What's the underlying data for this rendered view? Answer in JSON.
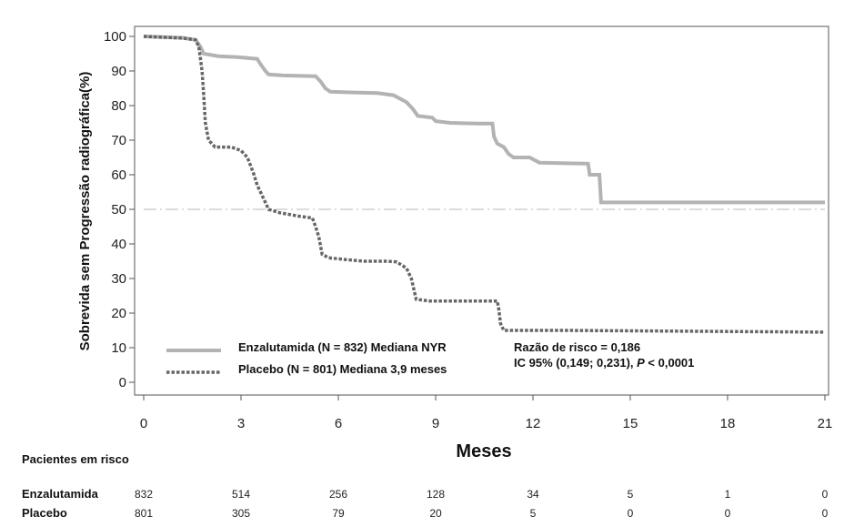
{
  "chart_data": {
    "type": "line",
    "ylabel": "Sobrevida sem Progressão radiográfica(%)",
    "xlabel": "Meses",
    "xlim": [
      0,
      21
    ],
    "ylim": [
      0,
      100
    ],
    "x_ticks": [
      0,
      3,
      6,
      9,
      12,
      15,
      18,
      21
    ],
    "y_ticks": [
      0,
      10,
      20,
      30,
      40,
      50,
      60,
      70,
      80,
      90,
      100
    ],
    "reference_line_y": 50,
    "legend_position": "bottom-left",
    "series": [
      {
        "name": "Enzalutamida (N = 832) Mediana NYR",
        "style": "solid",
        "color": "#b3b3b3",
        "points": [
          [
            0,
            100
          ],
          [
            1.2,
            99.6
          ],
          [
            1.6,
            99
          ],
          [
            1.75,
            97
          ],
          [
            1.85,
            95
          ],
          [
            2.3,
            94.3
          ],
          [
            2.9,
            94
          ],
          [
            3.5,
            93.5
          ],
          [
            3.6,
            92
          ],
          [
            3.75,
            90
          ],
          [
            3.85,
            89
          ],
          [
            4.3,
            88.7
          ],
          [
            5.3,
            88.5
          ],
          [
            5.45,
            87
          ],
          [
            5.6,
            85
          ],
          [
            5.75,
            84
          ],
          [
            6.5,
            83.8
          ],
          [
            7.2,
            83.6
          ],
          [
            7.7,
            83
          ],
          [
            8.1,
            81
          ],
          [
            8.3,
            79
          ],
          [
            8.45,
            77
          ],
          [
            8.9,
            76.5
          ],
          [
            9.0,
            75.5
          ],
          [
            9.45,
            75
          ],
          [
            10.3,
            74.8
          ],
          [
            10.75,
            74.8
          ],
          [
            10.8,
            71
          ],
          [
            10.9,
            69
          ],
          [
            11.1,
            68
          ],
          [
            11.25,
            66
          ],
          [
            11.4,
            65
          ],
          [
            11.9,
            65
          ],
          [
            12.2,
            63.5
          ],
          [
            13.2,
            63.3
          ],
          [
            13.7,
            63.2
          ],
          [
            13.75,
            60
          ],
          [
            14.05,
            60
          ],
          [
            14.1,
            52
          ],
          [
            21,
            52
          ]
        ]
      },
      {
        "name": "Placebo (N = 801) Mediana 3,9 meses",
        "style": "dotted",
        "color": "#666666",
        "points": [
          [
            0,
            100
          ],
          [
            1.2,
            99.5
          ],
          [
            1.6,
            99
          ],
          [
            1.7,
            97
          ],
          [
            1.8,
            90
          ],
          [
            1.85,
            83
          ],
          [
            1.9,
            75
          ],
          [
            2.0,
            70
          ],
          [
            2.2,
            68
          ],
          [
            2.7,
            68
          ],
          [
            3.0,
            67
          ],
          [
            3.2,
            65
          ],
          [
            3.4,
            60
          ],
          [
            3.5,
            57
          ],
          [
            3.7,
            53
          ],
          [
            3.75,
            52
          ],
          [
            3.85,
            50
          ],
          [
            4.2,
            49
          ],
          [
            4.8,
            48
          ],
          [
            5.2,
            47.5
          ],
          [
            5.3,
            45
          ],
          [
            5.4,
            42
          ],
          [
            5.5,
            37
          ],
          [
            5.7,
            36
          ],
          [
            6.2,
            35.5
          ],
          [
            6.8,
            35
          ],
          [
            7.5,
            35
          ],
          [
            7.8,
            34.8
          ],
          [
            8.1,
            33
          ],
          [
            8.25,
            30
          ],
          [
            8.35,
            26
          ],
          [
            8.4,
            24
          ],
          [
            8.8,
            23.5
          ],
          [
            10.5,
            23.5
          ],
          [
            10.9,
            23.5
          ],
          [
            10.95,
            21
          ],
          [
            11.0,
            17
          ],
          [
            11.1,
            15
          ],
          [
            13.0,
            15
          ],
          [
            21,
            14.5
          ]
        ]
      }
    ],
    "legend": [
      {
        "label": "Enzalutamida (N = 832) Mediana NYR",
        "style": "solid"
      },
      {
        "label": "Placebo (N = 801) Mediana 3,9 meses",
        "style": "dotted"
      }
    ],
    "annotations": [
      "Razão de risco = 0,186",
      "IC 95% (0,149; 0,231), P < 0,0001"
    ]
  },
  "risk_table": {
    "title": "Pacientes em risco",
    "months": [
      0,
      3,
      6,
      9,
      12,
      15,
      18,
      21
    ],
    "rows": [
      {
        "label": "Enzalutamida",
        "values": [
          "832",
          "514",
          "256",
          "128",
          "34",
          "5",
          "1",
          "0"
        ]
      },
      {
        "label": "Placebo",
        "values": [
          "801",
          "305",
          "79",
          "20",
          "5",
          "0",
          "0",
          "0"
        ]
      }
    ]
  },
  "colors": {
    "enzalutamida": "#b3b3b3",
    "placebo": "#666666",
    "axis": "#555555",
    "reference": "#c8c8c8"
  }
}
